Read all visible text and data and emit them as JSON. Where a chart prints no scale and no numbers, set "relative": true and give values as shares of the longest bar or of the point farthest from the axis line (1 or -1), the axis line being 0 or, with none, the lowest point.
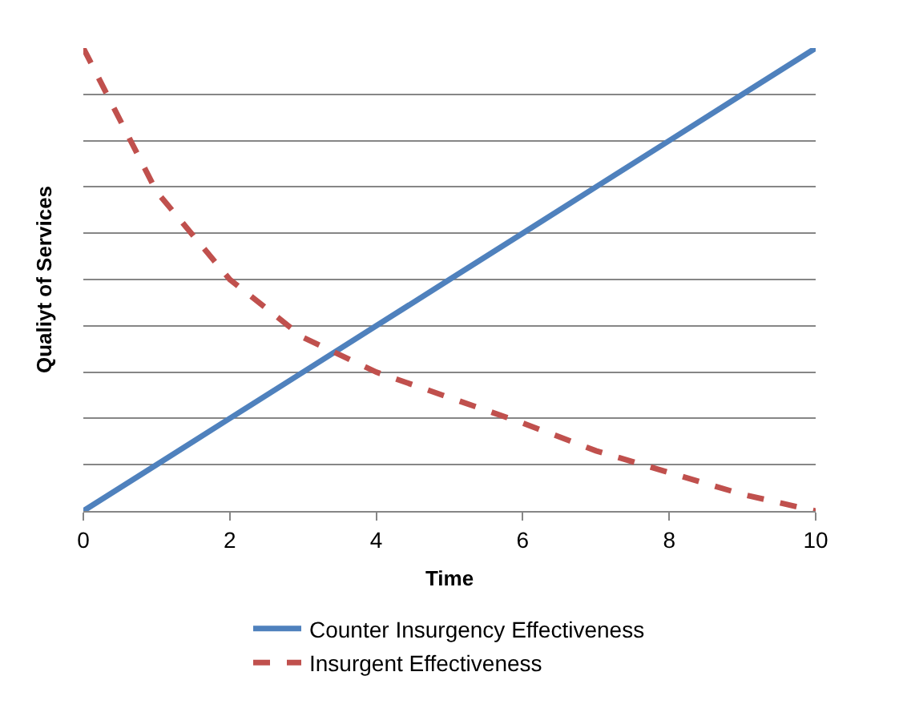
{
  "chart_data": {
    "type": "line",
    "relative": true,
    "xlabel": "Time",
    "ylabel": "Qualiyt of Services",
    "xlim": [
      0,
      10
    ],
    "xticks": [
      0,
      2,
      4,
      6,
      8,
      10
    ],
    "grid": "y",
    "legend": "bottom",
    "x": [
      0,
      1,
      2,
      3,
      4,
      5,
      6,
      7,
      8,
      9,
      10
    ],
    "series": [
      {
        "name": "Counter Insurgency Effectiveness",
        "color": "#4f81bd",
        "line_style": "solid",
        "values": [
          0,
          0.1,
          0.2,
          0.3,
          0.4,
          0.5,
          0.6,
          0.7,
          0.8,
          0.9,
          1
        ]
      },
      {
        "name": "Insurgent Effectiveness",
        "color": "#c0504d",
        "line_style": "dashed",
        "values": [
          1,
          0.69,
          0.5,
          0.375,
          0.3,
          0.245,
          0.19,
          0.13,
          0.083,
          0.036,
          0
        ]
      }
    ]
  }
}
